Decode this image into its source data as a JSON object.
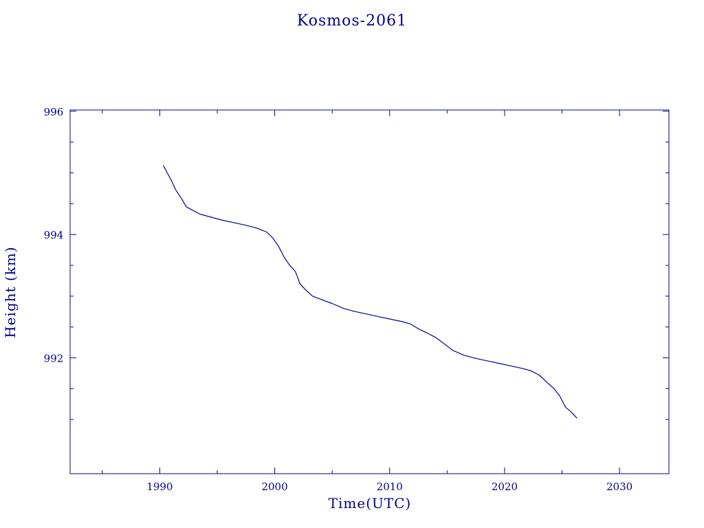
{
  "colors": {
    "axis": "#00008B",
    "line": "#00008B",
    "text": "#00008B",
    "background": "#ffffff"
  },
  "chart_data": {
    "type": "line",
    "title": "Kosmos-2061",
    "xlabel": "Time(UTC)",
    "ylabel": "Height (km)",
    "xlim": [
      1982.2,
      2034.3
    ],
    "ylim": [
      990.12,
      996.02
    ],
    "x_ticks": [
      1990,
      2000,
      2010,
      2020,
      2030
    ],
    "y_ticks": [
      992,
      994,
      996
    ],
    "grid": false,
    "legend": "none",
    "series": [
      {
        "x": [
          1990.3,
          1990.6,
          1991.0,
          1991.4,
          1991.9,
          1992.3,
          1992.8,
          1993.5,
          1994.5,
          1995.5,
          1996.5,
          1997.5,
          1998.5,
          1999.3,
          1999.8,
          2000.3,
          2000.8,
          2001.3,
          2001.8,
          2002.2,
          2002.7,
          2003.3,
          2004.0,
          2005.0,
          2006.0,
          2007.0,
          2008.0,
          2009.0,
          2010.0,
          2011.0,
          2011.8,
          2012.5,
          2013.3,
          2014.0,
          2014.8,
          2015.5,
          2016.5,
          2017.5,
          2018.5,
          2019.5,
          2020.5,
          2021.5,
          2022.3,
          2023.0,
          2023.7,
          2024.3,
          2024.8,
          2025.3,
          2025.8,
          2026.3
        ],
        "y": [
          995.12,
          995.02,
          994.88,
          994.72,
          994.58,
          994.45,
          994.4,
          994.33,
          994.28,
          994.23,
          994.19,
          994.15,
          994.1,
          994.04,
          993.95,
          993.82,
          993.64,
          993.5,
          993.4,
          993.2,
          993.1,
          993.0,
          992.95,
          992.88,
          992.8,
          992.75,
          992.71,
          992.67,
          992.63,
          992.59,
          992.55,
          992.47,
          992.4,
          992.33,
          992.22,
          992.12,
          992.04,
          991.99,
          991.95,
          991.91,
          991.87,
          991.83,
          991.79,
          991.72,
          991.6,
          991.5,
          991.38,
          991.2,
          991.12,
          991.02
        ]
      }
    ]
  }
}
